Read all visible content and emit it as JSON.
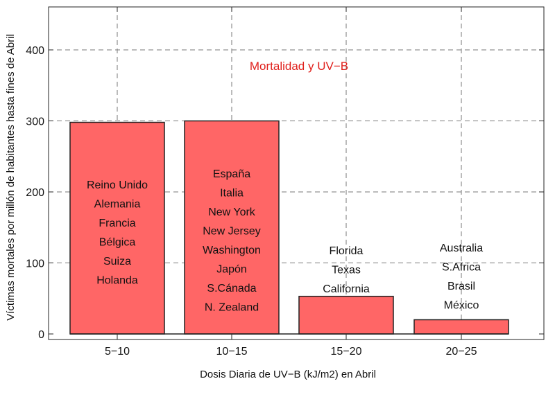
{
  "chart_data": {
    "type": "bar",
    "title": "Mortalidad y UV−B",
    "xlabel": "Dosis Diaria de UV−B (kJ/m2) en Abril",
    "ylabel": "Víctimas mortales por millón de habitantes hasta fines de Abril",
    "categories": [
      "5−10",
      "10−15",
      "15−20",
      "20−25"
    ],
    "values": [
      298,
      300,
      53,
      20
    ],
    "ylim": [
      0,
      450
    ],
    "yticks": [
      "0",
      "100",
      "200",
      "300",
      "400"
    ],
    "grid": true,
    "bar_color": "#ff6666",
    "title_color": "#e0201c",
    "bar_labels": [
      [
        "Reino Unido",
        "Alemania",
        "Francia",
        "Bélgica",
        "Suiza",
        "Holanda"
      ],
      [
        "España",
        "Italia",
        "New York",
        "New Jersey",
        "Washington",
        "Japón",
        "S.Cánada",
        "N. Zealand"
      ],
      [
        "Florida",
        "Texas",
        "California"
      ],
      [
        "Australia",
        "S.Africa",
        "Brasil",
        "México"
      ]
    ]
  }
}
